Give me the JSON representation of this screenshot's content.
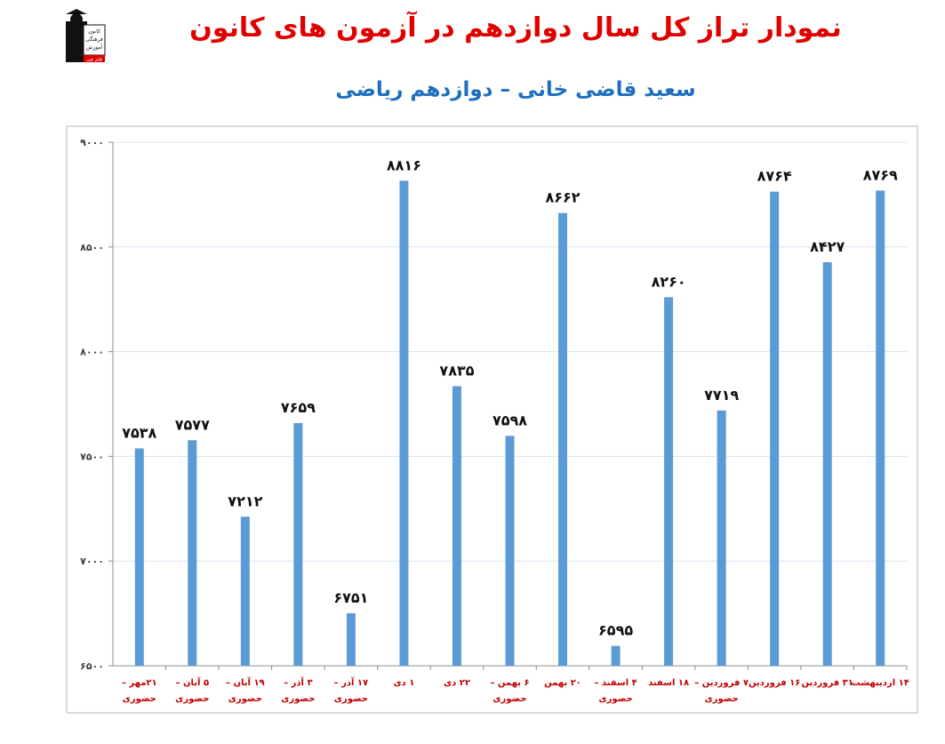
{
  "header": {
    "title": "نمودار تراز کل سال دوازدهم در آزمون های کانون",
    "subtitle": "سعید قاضی خانی – دوازدهم ریاضی"
  },
  "logo": {
    "lines": [
      "کانون",
      "فرهنگی",
      "آموزش"
    ],
    "tag": "قلم چی"
  },
  "colors": {
    "bar": "#5b9bd5",
    "title": "#e00000",
    "subtitle": "#1f6fbf",
    "category_label": "#c00000",
    "grid": "#d6e4f0"
  },
  "chart_data": {
    "type": "bar",
    "categories": [
      [
        "۲۱مهر –",
        "حضوری"
      ],
      [
        "۵ آبان –",
        "حضوری"
      ],
      [
        "۱۹ آبان –",
        "حضوری"
      ],
      [
        "۳ آذر –",
        "حضوری"
      ],
      [
        "۱۷ آذر –",
        "حضوری"
      ],
      [
        "۱ دی"
      ],
      [
        "۲۲ دی"
      ],
      [
        "۶ بهمن –",
        "حضوری"
      ],
      [
        "۲۰ بهمن"
      ],
      [
        "۴ اسفند –",
        "حضوری"
      ],
      [
        "۱۸ اسفند"
      ],
      [
        "۷ فروردین –",
        "حضوری"
      ],
      [
        "۱۶ فروردین"
      ],
      [
        "۳۱ فروردین"
      ],
      [
        "۱۴ اردیبهشت"
      ]
    ],
    "values": [
      7538,
      7577,
      7212,
      7659,
      6751,
      8816,
      7835,
      7598,
      8662,
      6595,
      8260,
      7719,
      8764,
      8427,
      8769
    ],
    "value_labels": [
      "۷۵۳۸",
      "۷۵۷۷",
      "۷۲۱۲",
      "۷۶۵۹",
      "۶۷۵۱",
      "۸۸۱۶",
      "۷۸۳۵",
      "۷۵۹۸",
      "۸۶۶۲",
      "۶۵۹۵",
      "۸۲۶۰",
      "۷۷۱۹",
      "۸۷۶۴",
      "۸۴۲۷",
      "۸۷۶۹"
    ],
    "ylim": [
      6500,
      9000
    ],
    "yticks": [
      6500,
      7000,
      7500,
      8000,
      8500,
      9000
    ],
    "ytick_labels": [
      "۶۵۰۰",
      "۷۰۰۰",
      "۷۵۰۰",
      "۸۰۰۰",
      "۸۵۰۰",
      "۹۰۰۰"
    ],
    "xlabel": "",
    "ylabel": "",
    "grid": true,
    "legend": "none"
  }
}
